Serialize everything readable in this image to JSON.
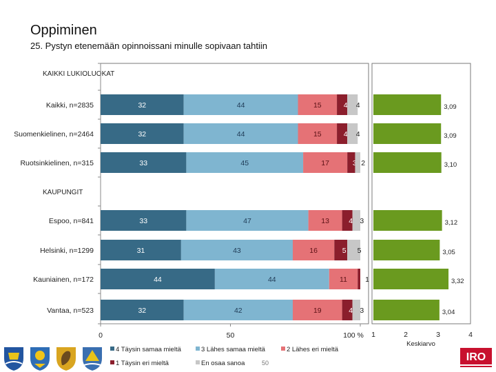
{
  "page": {
    "title": "Oppiminen",
    "subtitle": "25. Pystyn etenemään opinnoissani minulle sopivaan tahtiin"
  },
  "chart_data": {
    "type": "bar",
    "orientation": "horizontal",
    "stacked": true,
    "groups": [
      {
        "label": "KAIKKI LUKIOLUOKAT",
        "rows": [
          0,
          1,
          2
        ]
      },
      {
        "label": "KAUPUNGIT",
        "rows": [
          3,
          4,
          5,
          6
        ]
      }
    ],
    "categories": [
      "Kaikki, n=2835",
      "Suomenkielinen, n=2464",
      "Ruotsinkielinen, n=315",
      "Espoo, n=841",
      "Helsinki, n=1299",
      "Kauniainen, n=172",
      "Vantaa, n=523"
    ],
    "series": [
      {
        "name": "4 Täysin samaa mieltä",
        "color": "#376a86",
        "values": [
          32,
          32,
          33,
          33,
          31,
          44,
          32
        ]
      },
      {
        "name": "3 Lähes samaa mieltä",
        "color": "#7fb5d0",
        "values": [
          44,
          44,
          45,
          47,
          43,
          44,
          42
        ]
      },
      {
        "name": "2 Lähes eri mieltä",
        "color": "#e57276",
        "values": [
          15,
          15,
          17,
          13,
          16,
          11,
          19
        ]
      },
      {
        "name": "1 Täysin eri mieltä",
        "color": "#8b1e2c",
        "values": [
          4,
          4,
          3,
          4,
          5,
          1,
          4
        ]
      },
      {
        "name": "En osaa sanoa",
        "color": "#c7c7c7",
        "values": [
          4,
          4,
          2,
          3,
          5,
          0,
          3
        ]
      }
    ],
    "label_values": [
      [
        "32",
        "44",
        "15",
        "4",
        "4"
      ],
      [
        "32",
        "44",
        "15",
        "4",
        "4"
      ],
      [
        "33",
        "45",
        "17",
        "3",
        "2"
      ],
      [
        "33",
        "47",
        "13",
        "4",
        "3"
      ],
      [
        "31",
        "43",
        "16",
        "5",
        "5"
      ],
      [
        "44",
        "44",
        "11",
        "1",
        ""
      ],
      [
        "32",
        "42",
        "19",
        "4",
        "3"
      ]
    ],
    "x_ticks": [
      "0",
      "50",
      "100 %"
    ],
    "xlim": [
      0,
      100
    ],
    "mean": {
      "xlabel": "Keskiarvo",
      "color": "#6a9a1f",
      "ticks": [
        "1",
        "2",
        "3",
        "4"
      ],
      "xlim": [
        1,
        4
      ],
      "values": [
        3.09,
        3.09,
        3.1,
        3.12,
        3.05,
        3.32,
        3.04
      ],
      "labels": [
        "3,09",
        "3,09",
        "3,10",
        "3,12",
        "3,05",
        "3,32",
        "3,04"
      ]
    },
    "footer_number": "50"
  },
  "logos": {
    "coats_of_arms": [
      "helsinki-coat-of-arms-icon",
      "espoo-coat-of-arms-icon",
      "kauniainen-coat-of-arms-icon",
      "vantaa-coat-of-arms-icon"
    ],
    "brand": "IRO",
    "brand_color": "#c8102e"
  }
}
